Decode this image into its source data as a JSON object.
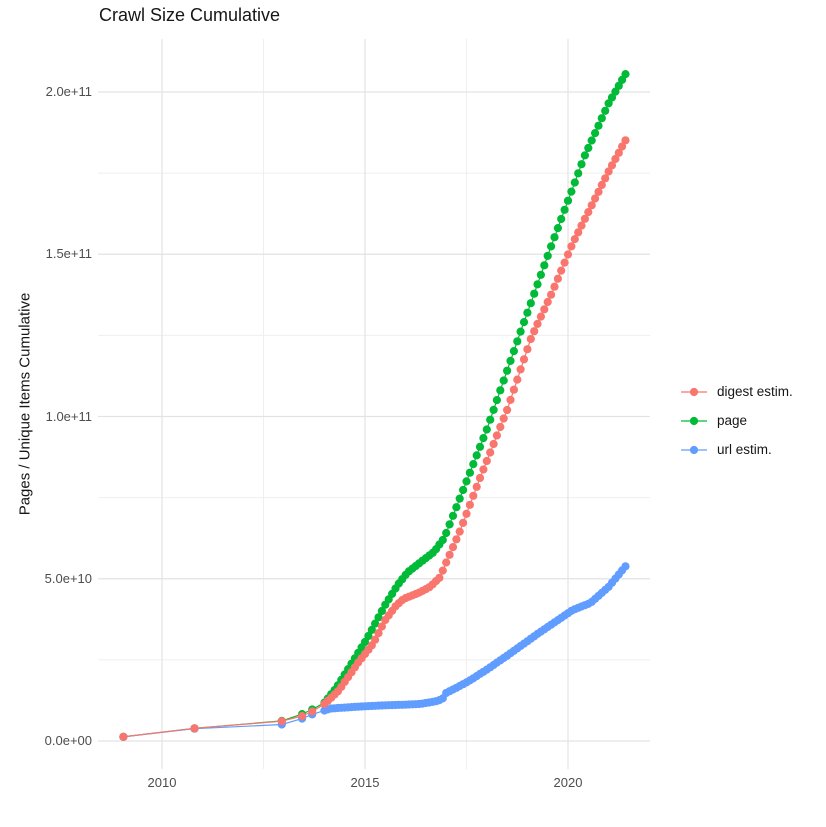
{
  "title": "Crawl Size Cumulative",
  "chart_data": {
    "type": "scatter",
    "title": "Crawl Size Cumulative",
    "xlabel": "",
    "ylabel": "Pages / Unique Items Cumulative",
    "value_units": "items, values in billions (1e9)",
    "x_range": [
      2008.43,
      2022.04
    ],
    "y_range_e9": [
      -8.8,
      215.8
    ],
    "grid": true,
    "legend_position": "right",
    "x_ticks": [
      {
        "value": 2010,
        "label": "2010"
      },
      {
        "value": 2015,
        "label": "2015"
      },
      {
        "value": 2020,
        "label": "2020"
      }
    ],
    "x_minor_ticks": [
      2012.5,
      2017.5
    ],
    "y_ticks": [
      {
        "value_e9": 0,
        "label": "0.0e+00"
      },
      {
        "value_e9": 50,
        "label": "5.0e+10"
      },
      {
        "value_e9": 100,
        "label": "1.0e+11"
      },
      {
        "value_e9": 150,
        "label": "1.5e+11"
      },
      {
        "value_e9": 200,
        "label": "2.0e+11"
      }
    ],
    "y_minor_ticks_e9": [
      25,
      75,
      125,
      175
    ],
    "sampling_per_year": 12,
    "draw_order": [
      "page",
      "url estim.",
      "digest estim."
    ],
    "series": [
      {
        "name": "digest estim.",
        "color": "#F8766D",
        "early_points_e9": [
          [
            2009.05,
            1.3
          ],
          [
            2010.8,
            3.9
          ],
          [
            2012.95,
            6.1
          ],
          [
            2013.45,
            7.7
          ],
          [
            2013.7,
            9.1
          ]
        ],
        "anchors_e9": [
          [
            2014.0,
            11.4
          ],
          [
            2014.35,
            15.5
          ],
          [
            2014.6,
            20.0
          ],
          [
            2014.85,
            24.5
          ],
          [
            2015.0,
            26.8
          ],
          [
            2015.2,
            30.0
          ],
          [
            2015.5,
            37.3
          ],
          [
            2015.75,
            41.5
          ],
          [
            2015.95,
            43.8
          ],
          [
            2016.35,
            45.8
          ],
          [
            2016.6,
            47.5
          ],
          [
            2016.85,
            50.5
          ],
          [
            2017.0,
            55.0
          ],
          [
            2017.35,
            65.0
          ],
          [
            2017.8,
            80.0
          ],
          [
            2018.5,
            102.0
          ],
          [
            2019.1,
            124.5
          ],
          [
            2019.6,
            138.0
          ],
          [
            2020.12,
            153.5
          ],
          [
            2020.5,
            163.0
          ],
          [
            2021.0,
            175.5
          ],
          [
            2021.42,
            185.2
          ]
        ]
      },
      {
        "name": "page",
        "color": "#00BA38",
        "early_points_e9": [
          [
            2009.05,
            1.3
          ],
          [
            2010.8,
            3.9
          ],
          [
            2012.95,
            6.2
          ],
          [
            2013.45,
            8.3
          ],
          [
            2013.7,
            9.7
          ]
        ],
        "anchors_e9": [
          [
            2014.0,
            11.8
          ],
          [
            2014.3,
            16.5
          ],
          [
            2014.55,
            21.5
          ],
          [
            2014.8,
            26.5
          ],
          [
            2015.0,
            30.5
          ],
          [
            2015.17,
            34.3
          ],
          [
            2015.5,
            42.0
          ],
          [
            2015.8,
            48.0
          ],
          [
            2016.05,
            52.0
          ],
          [
            2016.35,
            54.9
          ],
          [
            2016.7,
            58.3
          ],
          [
            2016.95,
            62.5
          ],
          [
            2017.5,
            80.0
          ],
          [
            2018.0,
            96.0
          ],
          [
            2018.8,
            125.0
          ],
          [
            2019.6,
            153.0
          ],
          [
            2020.4,
            180.0
          ],
          [
            2021.0,
            196.5
          ],
          [
            2021.42,
            205.6
          ]
        ]
      },
      {
        "name": "url estim.",
        "color": "#619CFF",
        "early_points_e9": [
          [
            2009.05,
            1.3
          ],
          [
            2010.8,
            3.8
          ],
          [
            2012.95,
            5.1
          ],
          [
            2013.45,
            6.9
          ],
          [
            2013.7,
            8.2
          ]
        ],
        "anchors_e9": [
          [
            2014.0,
            9.4
          ],
          [
            2014.15,
            10.0
          ],
          [
            2014.5,
            10.3
          ],
          [
            2015.0,
            10.7
          ],
          [
            2015.5,
            11.0
          ],
          [
            2016.0,
            11.2
          ],
          [
            2016.35,
            11.4
          ],
          [
            2016.6,
            11.9
          ],
          [
            2016.8,
            12.4
          ],
          [
            2016.93,
            13.2
          ],
          [
            2017.0,
            14.8
          ],
          [
            2017.25,
            16.4
          ],
          [
            2017.55,
            18.4
          ],
          [
            2017.85,
            20.8
          ],
          [
            2018.0,
            22.0
          ],
          [
            2018.5,
            26.3
          ],
          [
            2019.25,
            33.0
          ],
          [
            2020.12,
            40.4
          ],
          [
            2020.55,
            42.5
          ],
          [
            2021.0,
            47.5
          ],
          [
            2021.42,
            53.9
          ]
        ]
      }
    ]
  },
  "style": {
    "grid_major_color": "#E3E3E3",
    "grid_minor_color": "#EFEFEF",
    "tick_label_color": "#4d4d4d",
    "point_radius": 4.1
  }
}
